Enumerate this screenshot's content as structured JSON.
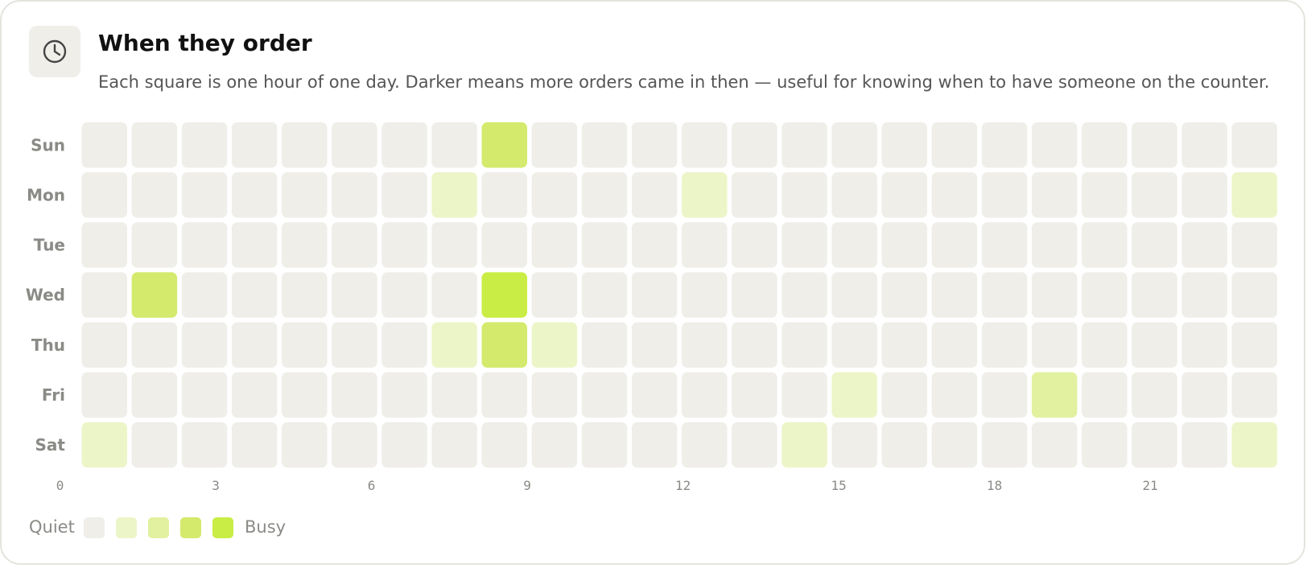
{
  "chart_data": {
    "type": "heatmap",
    "title": "When they order",
    "subtitle": "Each square is one hour of one day. Darker means more orders came in then — useful for knowing when to have someone on the counter.",
    "y_categories": [
      "Sun",
      "Mon",
      "Tue",
      "Wed",
      "Thu",
      "Fri",
      "Sat"
    ],
    "x": [
      0,
      1,
      2,
      3,
      4,
      5,
      6,
      7,
      8,
      9,
      10,
      11,
      12,
      13,
      14,
      15,
      16,
      17,
      18,
      19,
      20,
      21,
      22,
      23
    ],
    "xticks": [
      0,
      3,
      6,
      9,
      12,
      15,
      18,
      21
    ],
    "values": [
      [
        0,
        0,
        0,
        0,
        0,
        0,
        0,
        0,
        3,
        0,
        0,
        0,
        0,
        0,
        0,
        0,
        0,
        0,
        0,
        0,
        0,
        0,
        0,
        0
      ],
      [
        0,
        0,
        0,
        0,
        0,
        0,
        0,
        1,
        0,
        0,
        0,
        0,
        1,
        0,
        0,
        0,
        0,
        0,
        0,
        0,
        0,
        0,
        0,
        1
      ],
      [
        0,
        0,
        0,
        0,
        0,
        0,
        0,
        0,
        0,
        0,
        0,
        0,
        0,
        0,
        0,
        0,
        0,
        0,
        0,
        0,
        0,
        0,
        0,
        0
      ],
      [
        0,
        3,
        0,
        0,
        0,
        0,
        0,
        0,
        4,
        0,
        0,
        0,
        0,
        0,
        0,
        0,
        0,
        0,
        0,
        0,
        0,
        0,
        0,
        0
      ],
      [
        0,
        0,
        0,
        0,
        0,
        0,
        0,
        1,
        3,
        1,
        0,
        0,
        0,
        0,
        0,
        0,
        0,
        0,
        0,
        0,
        0,
        0,
        0,
        0
      ],
      [
        0,
        0,
        0,
        0,
        0,
        0,
        0,
        0,
        0,
        0,
        0,
        0,
        0,
        0,
        0,
        1,
        0,
        0,
        0,
        2,
        0,
        0,
        0,
        0
      ],
      [
        1,
        0,
        0,
        0,
        0,
        0,
        0,
        0,
        0,
        0,
        0,
        0,
        0,
        0,
        1,
        0,
        0,
        0,
        0,
        0,
        0,
        0,
        0,
        1
      ]
    ],
    "colors": [
      "#efeee9",
      "#ecf5c8",
      "#e2f19f",
      "#d4ea6c",
      "#c9ed44"
    ],
    "legend_low": "Quiet",
    "legend_high": "Busy"
  }
}
